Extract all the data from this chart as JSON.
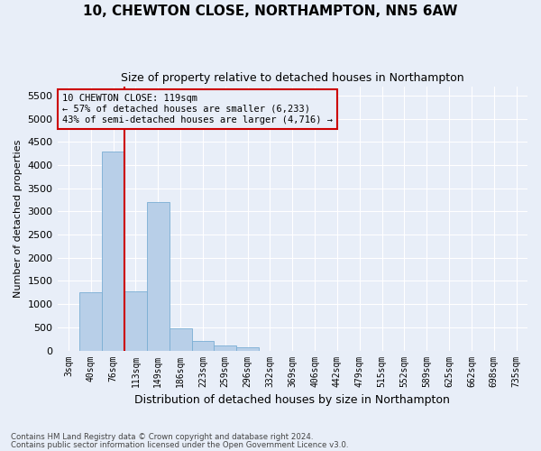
{
  "title1": "10, CHEWTON CLOSE, NORTHAMPTON, NN5 6AW",
  "title2": "Size of property relative to detached houses in Northampton",
  "xlabel": "Distribution of detached houses by size in Northampton",
  "ylabel": "Number of detached properties",
  "footer1": "Contains HM Land Registry data © Crown copyright and database right 2024.",
  "footer2": "Contains public sector information licensed under the Open Government Licence v3.0.",
  "annotation_line1": "10 CHEWTON CLOSE: 119sqm",
  "annotation_line2": "← 57% of detached houses are smaller (6,233)",
  "annotation_line3": "43% of semi-detached houses are larger (4,716) →",
  "bar_color": "#b8cfe8",
  "bar_edge_color": "#7aaed4",
  "background_color": "#e8eef8",
  "grid_color": "#ffffff",
  "vline_color": "#cc0000",
  "annotation_box_edge": "#cc0000",
  "annotation_box_bg": "#e8eef8",
  "categories": [
    "3sqm",
    "40sqm",
    "76sqm",
    "113sqm",
    "149sqm",
    "186sqm",
    "223sqm",
    "259sqm",
    "296sqm",
    "332sqm",
    "369sqm",
    "406sqm",
    "442sqm",
    "479sqm",
    "515sqm",
    "552sqm",
    "589sqm",
    "625sqm",
    "662sqm",
    "698sqm",
    "735sqm"
  ],
  "values": [
    0,
    1250,
    4300,
    1280,
    3200,
    480,
    200,
    100,
    70,
    0,
    0,
    0,
    0,
    0,
    0,
    0,
    0,
    0,
    0,
    0,
    0
  ],
  "vline_x_index": 3,
  "ylim_max": 5700,
  "ytick_max": 5500,
  "ytick_step": 500
}
